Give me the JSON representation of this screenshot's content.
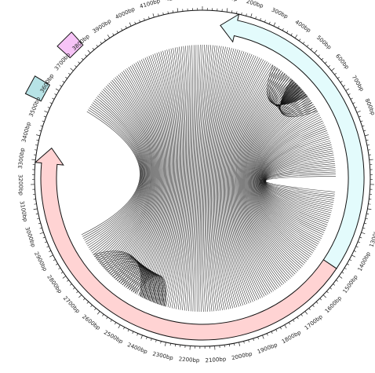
{
  "map": {
    "units": "bp",
    "total_length": 4300,
    "origin_angle_deg": 90,
    "major_tick_step": 100,
    "minor_tick_step": 20,
    "tick_labels": [
      "100bp",
      "200bp",
      "300bp",
      "400bp",
      "500bp",
      "600bp",
      "700bp",
      "800bp",
      "900bp",
      "1000bp",
      "1100bp",
      "1200bp",
      "1300bp",
      "1400bp",
      "1500bp",
      "1600bp",
      "1700bp",
      "1800bp",
      "1900bp",
      "2000bp",
      "2100bp",
      "2200bp",
      "2300bp",
      "2400bp",
      "2500bp",
      "2600bp",
      "2700bp",
      "2800bp",
      "2900bp",
      "3000bp",
      "3100bp",
      "3200bp",
      "3300bp",
      "3400bp",
      "3500bp",
      "3600bp",
      "3700bp",
      "3800bp",
      "3900bp",
      "4000bp",
      "4100bp",
      "4200bp"
    ]
  },
  "features": [
    {
      "start": 1480,
      "end": 3360,
      "direction": "forward",
      "color": "#ffd3d3"
    },
    {
      "start": 80,
      "end": 1480,
      "direction": "reverse",
      "color": "#e3fbfc"
    },
    {
      "start": 3530,
      "end": 3600,
      "direction": "none",
      "color": "#b7e3e6",
      "track": "outer"
    },
    {
      "start": 3730,
      "end": 3800,
      "direction": "none",
      "color": "#f7c4f7",
      "track": "outer"
    }
  ],
  "links": {
    "color": "#111111",
    "count": 220
  }
}
